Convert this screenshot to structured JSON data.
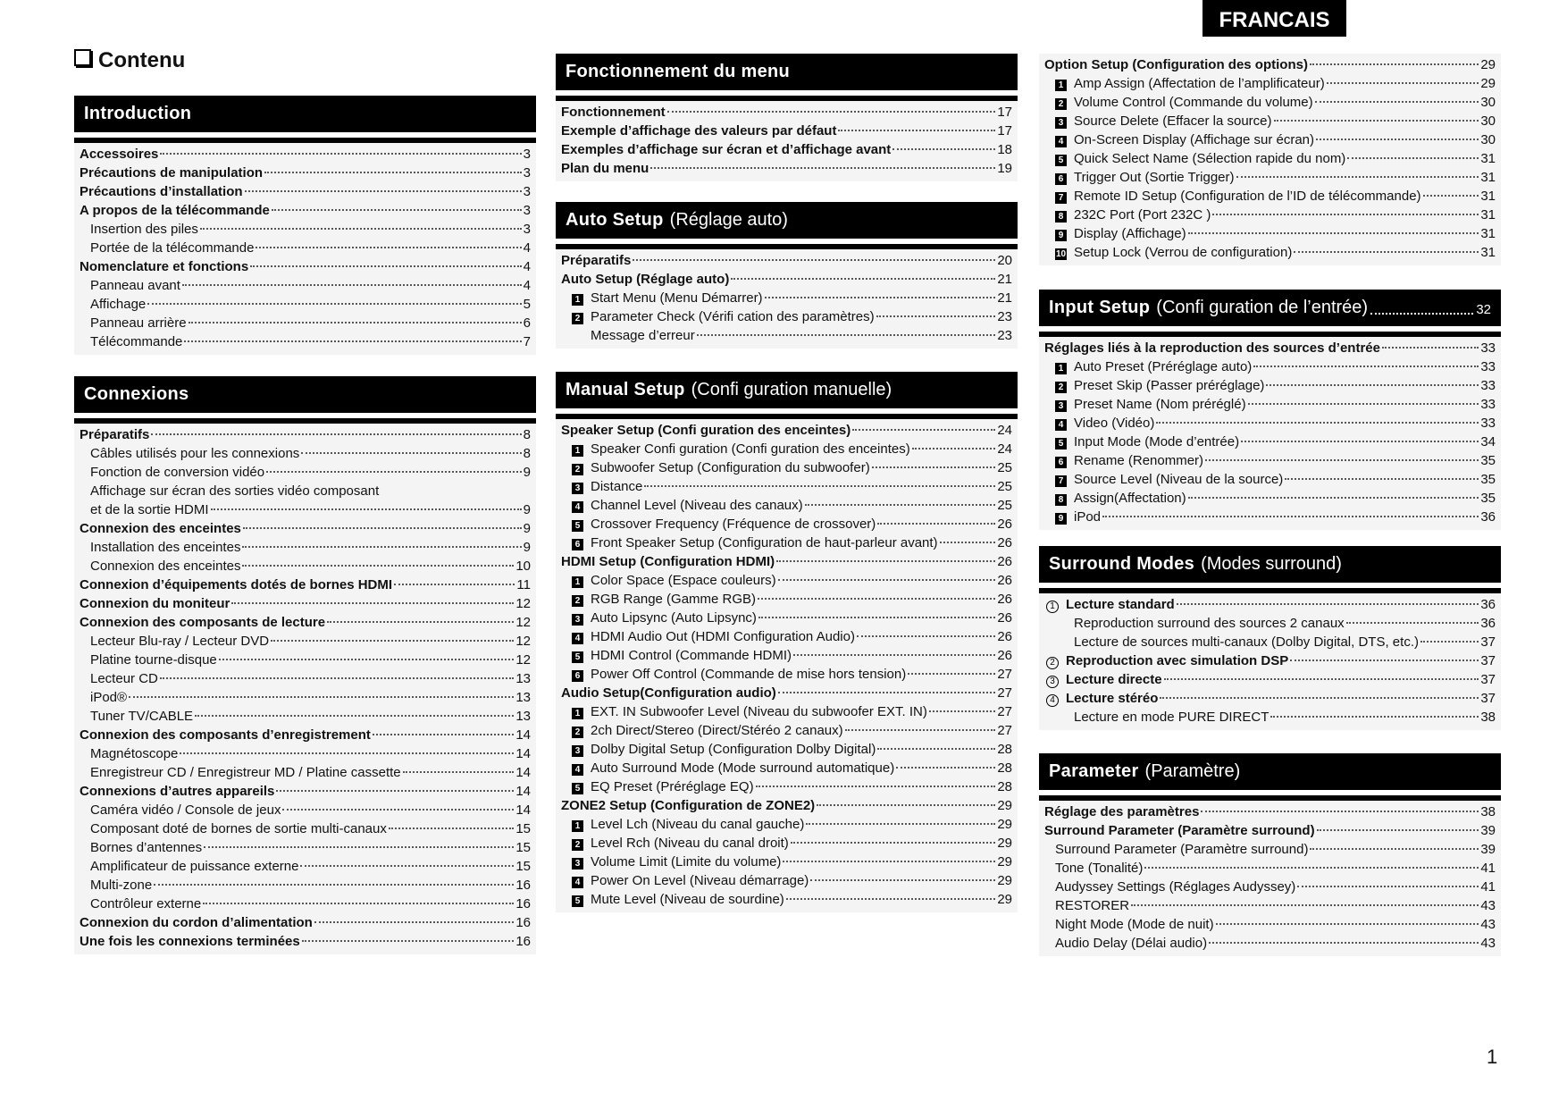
{
  "language_tab": "FRANCAIS",
  "title": "Contenu",
  "page_number": "1",
  "sections": [
    {
      "title": "Introduction",
      "subtitle": "",
      "page": "",
      "entries": [
        {
          "text": "Accessoires",
          "bold": true,
          "page": "3"
        },
        {
          "text": "Précautions de manipulation",
          "bold": true,
          "page": "3"
        },
        {
          "text": "Précautions d’installation",
          "bold": true,
          "page": "3"
        },
        {
          "text": "A propos de la télécommande",
          "bold": true,
          "page": "3"
        },
        {
          "text": "Insertion des piles",
          "page": "3",
          "indent": 1
        },
        {
          "text": "Portée de la télécommande",
          "page": "4",
          "indent": 1
        },
        {
          "text": "Nomenclature et fonctions",
          "bold": true,
          "page": "4"
        },
        {
          "text": "Panneau avant",
          "page": "4",
          "indent": 1
        },
        {
          "text": "Affichage",
          "page": "5",
          "indent": 1
        },
        {
          "text": "Panneau arrière",
          "page": "6",
          "indent": 1
        },
        {
          "text": "Télécommande",
          "page": "7",
          "indent": 1
        }
      ]
    },
    {
      "title": "Connexions",
      "subtitle": "",
      "page": "",
      "entries": [
        {
          "text": "Préparatifs",
          "bold": true,
          "page": "8"
        },
        {
          "text": "Câbles utilisés pour les connexions",
          "page": "8",
          "indent": 1
        },
        {
          "text": "Fonction de conversion vidéo",
          "page": "9",
          "indent": 1
        },
        {
          "text": "Affichage sur écran des sorties vidéo composant",
          "page": "",
          "indent": 1,
          "noleader": true
        },
        {
          "text": "et de la sortie HDMI",
          "page": "9",
          "indent": 1
        },
        {
          "text": "Connexion des enceintes",
          "bold": true,
          "page": "9"
        },
        {
          "text": "Installation des enceintes",
          "page": "9",
          "indent": 1
        },
        {
          "text": "Connexion des enceintes",
          "page": "10",
          "indent": 1
        },
        {
          "text": "Connexion d’équipements dotés de bornes HDMI",
          "bold": true,
          "page": "11"
        },
        {
          "text": "Connexion du moniteur",
          "bold": true,
          "page": "12"
        },
        {
          "text": "Connexion des composants de lecture",
          "bold": true,
          "page": "12"
        },
        {
          "text": "Lecteur Blu-ray / Lecteur DVD",
          "page": "12",
          "indent": 1
        },
        {
          "text": "Platine tourne-disque",
          "page": "12",
          "indent": 1
        },
        {
          "text": "Lecteur CD",
          "page": "13",
          "indent": 1
        },
        {
          "text": "iPod®",
          "page": "13",
          "indent": 1
        },
        {
          "text": "Tuner TV/CABLE",
          "page": "13",
          "indent": 1
        },
        {
          "text": "Connexion des composants d’enregistrement",
          "bold": true,
          "page": "14"
        },
        {
          "text": "Magnétoscope",
          "page": "14",
          "indent": 1
        },
        {
          "text": "Enregistreur CD / Enregistreur MD / Platine cassette",
          "page": "14",
          "indent": 1
        },
        {
          "text": "Connexions d’autres appareils",
          "bold": true,
          "page": "14"
        },
        {
          "text": "Caméra vidéo / Console de jeux",
          "page": "14",
          "indent": 1
        },
        {
          "text": "Composant doté de bornes de sortie multi-canaux",
          "page": "15",
          "indent": 1
        },
        {
          "text": "Bornes d’antennes",
          "page": "15",
          "indent": 1
        },
        {
          "text": "Amplificateur de puissance externe",
          "page": "15",
          "indent": 1
        },
        {
          "text": "Multi-zone",
          "page": "16",
          "indent": 1
        },
        {
          "text": "Contrôleur externe",
          "page": "16",
          "indent": 1
        },
        {
          "text": "Connexion du cordon d’alimentation",
          "bold": true,
          "page": "16"
        },
        {
          "text": "Une fois les connexions terminées",
          "bold": true,
          "page": "16"
        }
      ]
    },
    {
      "title": "Fonctionnement du menu",
      "subtitle": "",
      "page": "",
      "entries": [
        {
          "text": "Fonctionnement",
          "bold": true,
          "page": "17"
        },
        {
          "text": "Exemple d’affichage des valeurs par défaut",
          "bold": true,
          "page": "17"
        },
        {
          "text": "Exemples d’affichage sur écran et d’affichage avant",
          "bold": true,
          "page": "18"
        },
        {
          "text": "Plan du menu",
          "bold": true,
          "page": "19"
        }
      ]
    },
    {
      "title": "Auto Setup",
      "subtitle": "(Réglage auto)",
      "page": "",
      "entries": [
        {
          "text": "Préparatifs",
          "bold": true,
          "page": "20"
        },
        {
          "text": "Auto Setup (Réglage auto)",
          "bold": true,
          "page": "21"
        },
        {
          "marker": "1",
          "text": "Start Menu (Menu Démarrer)",
          "page": "21"
        },
        {
          "marker": "2",
          "text": "Parameter Check (Vérifi cation des paramètres)",
          "page": "23"
        },
        {
          "text": "Message d’erreur",
          "page": "23",
          "indent": 2
        }
      ]
    },
    {
      "title": "Manual Setup",
      "subtitle": "(Confi guration manuelle)",
      "page": "",
      "entries": [
        {
          "text": "Speaker Setup (Confi guration des enceintes)",
          "bold": true,
          "page": "24"
        },
        {
          "marker": "1",
          "text": "Speaker Confi guration (Confi guration des enceintes)",
          "page": "24"
        },
        {
          "marker": "2",
          "text": "Subwoofer Setup (Configuration du subwoofer)",
          "page": "25"
        },
        {
          "marker": "3",
          "text": "Distance",
          "page": "25"
        },
        {
          "marker": "4",
          "text": "Channel Level (Niveau des canaux)",
          "page": "25"
        },
        {
          "marker": "5",
          "text": "Crossover Frequency (Fréquence de crossover)",
          "page": "26"
        },
        {
          "marker": "6",
          "text": "Front Speaker Setup (Configuration de haut-parleur avant)",
          "page": "26"
        },
        {
          "text": "HDMI Setup (Configuration HDMI)",
          "bold": true,
          "page": "26"
        },
        {
          "marker": "1",
          "text": "Color Space (Espace couleurs)",
          "page": "26"
        },
        {
          "marker": "2",
          "text": "RGB Range (Gamme RGB)",
          "page": "26"
        },
        {
          "marker": "3",
          "text": "Auto Lipsync (Auto Lipsync)",
          "page": "26"
        },
        {
          "marker": "4",
          "text": "HDMI Audio Out (HDMI Configuration Audio)",
          "page": "26"
        },
        {
          "marker": "5",
          "text": "HDMI Control (Commande HDMI)",
          "page": "26"
        },
        {
          "marker": "6",
          "text": "Power Off Control (Commande de mise hors tension)",
          "page": "27"
        },
        {
          "text": "Audio Setup(Configuration audio)",
          "bold": true,
          "page": "27"
        },
        {
          "marker": "1",
          "text": "EXT. IN Subwoofer Level (Niveau du subwoofer EXT. IN)",
          "page": "27"
        },
        {
          "marker": "2",
          "text": "2ch Direct/Stereo (Direct/Stéréo 2 canaux)",
          "page": "27"
        },
        {
          "marker": "3",
          "text": "Dolby Digital Setup (Configuration Dolby Digital)",
          "page": "28"
        },
        {
          "marker": "4",
          "text": "Auto Surround Mode (Mode surround automatique)",
          "page": "28"
        },
        {
          "marker": "5",
          "text": "EQ Preset (Préréglage EQ)",
          "page": "28"
        },
        {
          "text": "ZONE2 Setup (Configuration de ZONE2)",
          "bold": true,
          "page": "29"
        },
        {
          "marker": "1",
          "text": "Level Lch (Niveau du canal gauche)",
          "page": "29"
        },
        {
          "marker": "2",
          "text": "Level Rch (Niveau du canal droit)",
          "page": "29"
        },
        {
          "marker": "3",
          "text": "Volume Limit (Limite du volume)",
          "page": "29"
        },
        {
          "marker": "4",
          "text": "Power On Level (Niveau démarrage)",
          "page": "29"
        },
        {
          "marker": "5",
          "text": "Mute Level (Niveau de sourdine)",
          "page": "29"
        }
      ]
    },
    {
      "title": "",
      "subtitle": "",
      "page": "",
      "entries": [
        {
          "text": "Option Setup (Configuration des options)",
          "bold": true,
          "page": "29"
        },
        {
          "marker": "1",
          "text": "Amp Assign (Affectation de l’amplificateur)",
          "page": "29"
        },
        {
          "marker": "2",
          "text": "Volume Control (Commande du volume)",
          "page": "30"
        },
        {
          "marker": "3",
          "text": "Source Delete (Effacer la source)",
          "page": "30"
        },
        {
          "marker": "4",
          "text": "On-Screen Display (Affichage sur écran)",
          "page": "30"
        },
        {
          "marker": "5",
          "text": "Quick Select Name (Sélection rapide du nom)",
          "page": "31"
        },
        {
          "marker": "6",
          "text": "Trigger Out (Sortie Trigger)",
          "page": "31"
        },
        {
          "marker": "7",
          "text": "Remote ID Setup (Configuration de l’ID de télécommande)",
          "page": "31"
        },
        {
          "marker": "8",
          "text": "232C Port (Port 232C )",
          "page": "31"
        },
        {
          "marker": "9",
          "text": "Display (Affichage)",
          "page": "31"
        },
        {
          "marker": "10",
          "text": "Setup Lock (Verrou de configuration)",
          "page": "31"
        }
      ]
    },
    {
      "title": "Input Setup",
      "subtitle": "(Confi guration de l’entrée)",
      "page": "32",
      "entries": [
        {
          "text": "Réglages liés à la reproduction des sources d’entrée",
          "bold": true,
          "page": "33"
        },
        {
          "marker": "1",
          "text": "Auto Preset (Préréglage auto)",
          "page": "33"
        },
        {
          "marker": "2",
          "text": "Preset Skip (Passer préréglage)",
          "page": "33"
        },
        {
          "marker": "3",
          "text": "Preset Name (Nom préréglé)",
          "page": "33"
        },
        {
          "marker": "4",
          "text": "Video (Vidéo)",
          "page": "33"
        },
        {
          "marker": "5",
          "text": "Input Mode (Mode d’entrée)",
          "page": "34"
        },
        {
          "marker": "6",
          "text": "Rename (Renommer)",
          "page": "35"
        },
        {
          "marker": "7",
          "text": "Source Level (Niveau de la source)",
          "page": "35"
        },
        {
          "marker": "8",
          "text": "Assign(Affectation)",
          "page": "35"
        },
        {
          "marker": "9",
          "text": "iPod",
          "page": "36"
        }
      ]
    },
    {
      "title": "Surround Modes",
      "subtitle": "(Modes surround)",
      "page": "",
      "entries": [
        {
          "circle": "1",
          "text": "Lecture standard",
          "bold": true,
          "page": "36"
        },
        {
          "text": "Reproduction surround des sources 2 canaux",
          "page": "36",
          "indent": 2
        },
        {
          "text": "Lecture de sources multi-canaux (Dolby Digital, DTS, etc.)",
          "page": "37",
          "indent": 2
        },
        {
          "circle": "2",
          "text": "Reproduction avec simulation DSP",
          "bold": true,
          "page": "37"
        },
        {
          "circle": "3",
          "text": "Lecture directe",
          "bold": true,
          "page": "37"
        },
        {
          "circle": "4",
          "text": "Lecture stéréo",
          "bold": true,
          "page": "37"
        },
        {
          "text": "Lecture en mode PURE DIRECT",
          "page": "38",
          "indent": 2
        }
      ]
    },
    {
      "title": "Parameter",
      "subtitle": "(Paramètre)",
      "page": "",
      "entries": [
        {
          "text": "Réglage des paramètres",
          "bold": true,
          "page": "38"
        },
        {
          "text": "Surround Parameter (Paramètre surround)",
          "bold": true,
          "page": "39"
        },
        {
          "text": "Surround Parameter (Paramètre surround)",
          "page": "39",
          "indent": 1
        },
        {
          "text": "Tone (Tonalité)",
          "page": "41",
          "indent": 1
        },
        {
          "text": "Audyssey Settings (Réglages Audyssey)",
          "page": "41",
          "indent": 1
        },
        {
          "text": "RESTORER",
          "page": "43",
          "indent": 1
        },
        {
          "text": "Night Mode (Mode de nuit)",
          "page": "43",
          "indent": 1
        },
        {
          "text": "Audio Delay (Délai audio)",
          "page": "43",
          "indent": 1
        }
      ]
    }
  ]
}
